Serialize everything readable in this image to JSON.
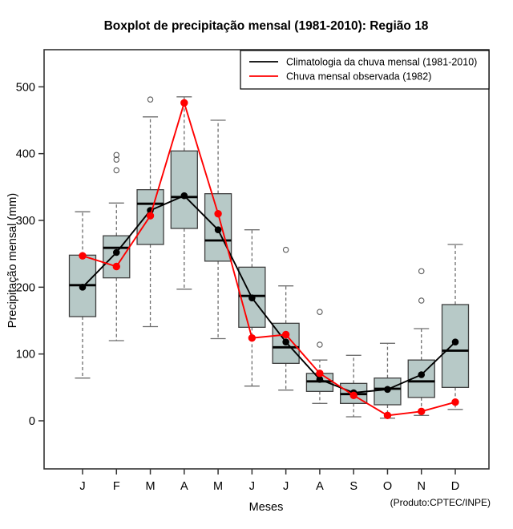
{
  "chart_data": {
    "type": "boxplot",
    "title": "Boxplot de precipitação mensal (1981-2010): Região 18",
    "xlabel": "Meses",
    "ylabel": "Precipitação mensal (mm)",
    "credit": "(Produto:CPTEC/INPE)",
    "categories": [
      "J",
      "F",
      "M",
      "A",
      "M",
      "J",
      "J",
      "A",
      "S",
      "O",
      "N",
      "D"
    ],
    "y_ticks": [
      0,
      100,
      200,
      300,
      400,
      500
    ],
    "ylim": [
      -72,
      556
    ],
    "grid": false,
    "legend_position": "topright",
    "boxes": {
      "whisker_low": [
        64,
        120,
        141,
        197,
        123,
        52,
        46,
        26,
        6,
        4,
        8,
        17
      ],
      "q1": [
        156,
        214,
        264,
        288,
        239,
        140,
        86,
        44,
        26,
        24,
        35,
        50
      ],
      "median": [
        203,
        259,
        325,
        335,
        270,
        187,
        110,
        59,
        40,
        48,
        59,
        105
      ],
      "q3": [
        248,
        277,
        346,
        404,
        340,
        230,
        146,
        71,
        56,
        64,
        91,
        174
      ],
      "whisker_high": [
        313,
        326,
        455,
        485,
        450,
        286,
        202,
        91,
        98,
        116,
        138,
        264
      ],
      "outliers": [
        [],
        [
          375,
          391,
          398
        ],
        [
          481
        ],
        [],
        [],
        [],
        [
          256
        ],
        [
          114,
          163
        ],
        [],
        [],
        [
          180,
          224
        ],
        []
      ]
    },
    "series": [
      {
        "name": "Climatologia da chuva mensal (1981-2010)",
        "color": "#000000",
        "values": [
          200,
          252,
          315,
          337,
          286,
          184,
          118,
          62,
          42,
          47,
          69,
          118
        ]
      },
      {
        "name": "Chuva mensal observada (1982)",
        "color": "#ff0000",
        "values": [
          247,
          231,
          307,
          476,
          310,
          124,
          129,
          71,
          38,
          8,
          14,
          28
        ]
      }
    ],
    "colors": {
      "box_fill": "#b7c9c7",
      "box_border": "#3f3f3f",
      "whisker": "#6e6e6e",
      "median": "#000000",
      "outlier": "#5a5a5a",
      "frame": "#333333"
    }
  }
}
